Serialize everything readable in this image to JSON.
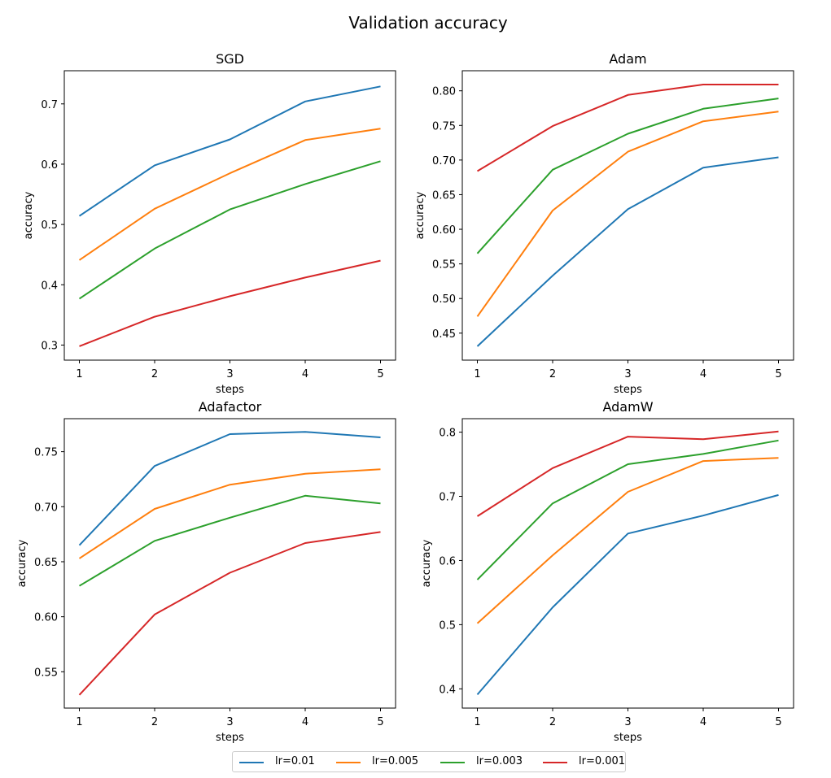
{
  "chart_data": {
    "type": "line",
    "title": "Validation accuracy",
    "series_names": [
      "lr=0.01",
      "lr=0.005",
      "lr=0.003",
      "lr=0.001"
    ],
    "colors": [
      "#1f77b4",
      "#ff7f0e",
      "#2ca02c",
      "#d62728"
    ],
    "legend_position": "bottom-center",
    "grid": false,
    "x": [
      1,
      2,
      3,
      4,
      5
    ],
    "subplots": [
      {
        "title": "SGD",
        "xlabel": "steps",
        "ylabel": "accuracy",
        "xlim": [
          0.8,
          5.2
        ],
        "ylim": [
          0.275,
          0.755
        ],
        "yticks": [
          0.3,
          0.4,
          0.5,
          0.6,
          0.7
        ],
        "ytick_labels": [
          "0.3",
          "0.4",
          "0.5",
          "0.6",
          "0.7"
        ],
        "series": [
          {
            "name": "lr=0.01",
            "values": [
              0.514,
              0.598,
              0.641,
              0.704,
              0.729
            ]
          },
          {
            "name": "lr=0.005",
            "values": [
              0.441,
              0.526,
              0.585,
              0.64,
              0.659
            ]
          },
          {
            "name": "lr=0.003",
            "values": [
              0.377,
              0.46,
              0.525,
              0.567,
              0.605
            ]
          },
          {
            "name": "lr=0.001",
            "values": [
              0.298,
              0.347,
              0.381,
              0.412,
              0.44
            ]
          }
        ]
      },
      {
        "title": "Adam",
        "xlabel": "steps",
        "ylabel": "accuracy",
        "xlim": [
          0.8,
          5.2
        ],
        "ylim": [
          0.411,
          0.829
        ],
        "yticks": [
          0.45,
          0.5,
          0.55,
          0.6,
          0.65,
          0.7,
          0.75,
          0.8
        ],
        "ytick_labels": [
          "0.45",
          "0.50",
          "0.55",
          "0.60",
          "0.65",
          "0.70",
          "0.75",
          "0.80"
        ],
        "series": [
          {
            "name": "lr=0.01",
            "values": [
              0.431,
              0.533,
              0.629,
              0.689,
              0.704
            ]
          },
          {
            "name": "lr=0.005",
            "values": [
              0.474,
              0.627,
              0.712,
              0.756,
              0.77
            ]
          },
          {
            "name": "lr=0.003",
            "values": [
              0.565,
              0.686,
              0.738,
              0.774,
              0.789
            ]
          },
          {
            "name": "lr=0.001",
            "values": [
              0.684,
              0.749,
              0.794,
              0.809,
              0.809
            ]
          }
        ]
      },
      {
        "title": "Adafactor",
        "xlabel": "steps",
        "ylabel": "accuracy",
        "xlim": [
          0.8,
          5.2
        ],
        "ylim": [
          0.517,
          0.78
        ],
        "yticks": [
          0.55,
          0.6,
          0.65,
          0.7,
          0.75
        ],
        "ytick_labels": [
          "0.55",
          "0.60",
          "0.65",
          "0.70",
          "0.75"
        ],
        "series": [
          {
            "name": "lr=0.01",
            "values": [
              0.665,
              0.737,
              0.766,
              0.768,
              0.763
            ]
          },
          {
            "name": "lr=0.005",
            "values": [
              0.653,
              0.698,
              0.72,
              0.73,
              0.734
            ]
          },
          {
            "name": "lr=0.003",
            "values": [
              0.628,
              0.669,
              0.69,
              0.71,
              0.703
            ]
          },
          {
            "name": "lr=0.001",
            "values": [
              0.529,
              0.602,
              0.64,
              0.667,
              0.677
            ]
          }
        ]
      },
      {
        "title": "AdamW",
        "xlabel": "steps",
        "ylabel": "accuracy",
        "xlim": [
          0.8,
          5.2
        ],
        "ylim": [
          0.37,
          0.821
        ],
        "yticks": [
          0.4,
          0.5,
          0.6,
          0.7,
          0.8
        ],
        "ytick_labels": [
          "0.4",
          "0.5",
          "0.6",
          "0.7",
          "0.8"
        ],
        "series": [
          {
            "name": "lr=0.01",
            "values": [
              0.391,
              0.527,
              0.642,
              0.67,
              0.702
            ]
          },
          {
            "name": "lr=0.005",
            "values": [
              0.502,
              0.608,
              0.707,
              0.755,
              0.76
            ]
          },
          {
            "name": "lr=0.003",
            "values": [
              0.57,
              0.689,
              0.75,
              0.766,
              0.787
            ]
          },
          {
            "name": "lr=0.001",
            "values": [
              0.669,
              0.744,
              0.793,
              0.789,
              0.801
            ]
          }
        ]
      }
    ]
  }
}
